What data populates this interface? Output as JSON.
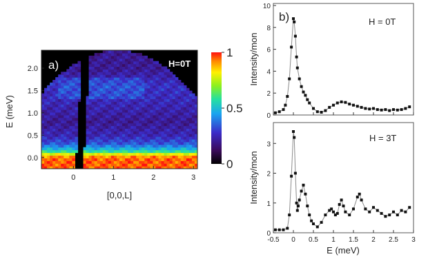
{
  "chart_data": [
    {
      "type": "heatmap",
      "panel_label": "a)",
      "annotation": "H=0T",
      "xlabel": "[0,0,L]",
      "ylabel": "E (meV)",
      "xlim": [
        -0.8,
        3.1
      ],
      "ylim": [
        -0.25,
        2.4
      ],
      "xticks": [
        "0",
        "1",
        "2",
        "3"
      ],
      "yticks": [
        "0.0",
        "0.5",
        "1.0",
        "1.5",
        "2.0"
      ],
      "colorbar": {
        "range": [
          0,
          1
        ],
        "ticks": [
          "0",
          "0.5",
          "1"
        ]
      },
      "intensity_by_energy": [
        {
          "E": -0.05,
          "I": 0.95
        },
        {
          "E": 0.05,
          "I": 0.9
        },
        {
          "E": 0.15,
          "I": 0.55
        },
        {
          "E": 0.3,
          "I": 0.35
        },
        {
          "E": 0.5,
          "I": 0.25
        },
        {
          "E": 0.8,
          "I": 0.2
        },
        {
          "E": 1.2,
          "I": 0.25
        },
        {
          "E": 1.6,
          "I": 0.28
        },
        {
          "E": 2.0,
          "I": 0.2
        }
      ],
      "gap_region_L": [
        0.05,
        0.25
      ]
    },
    {
      "type": "line",
      "panel_label": "b)",
      "annotation": "H = 0T",
      "ylabel": "Intensity/mon",
      "ylim": [
        0,
        10
      ],
      "yticks": [
        "0",
        "2",
        "4",
        "6",
        "8",
        "10"
      ],
      "xlim": [
        -0.5,
        3.0
      ],
      "series": [
        {
          "x": [
            -0.45,
            -0.35,
            -0.25,
            -0.2,
            -0.15,
            -0.1,
            -0.05,
            0.0,
            0.02,
            0.05,
            0.08,
            0.1,
            0.15,
            0.2,
            0.25,
            0.3,
            0.35,
            0.4,
            0.5,
            0.6,
            0.7,
            0.8,
            0.9,
            1.0,
            1.1,
            1.2,
            1.3,
            1.4,
            1.5,
            1.6,
            1.7,
            1.8,
            1.9,
            2.0,
            2.1,
            2.2,
            2.3,
            2.4,
            2.5,
            2.6,
            2.7,
            2.8,
            2.9
          ],
          "y": [
            0.2,
            0.3,
            0.5,
            0.9,
            1.7,
            3.3,
            6.2,
            8.8,
            8.5,
            7.2,
            5.3,
            4.3,
            3.3,
            2.6,
            2.1,
            1.8,
            1.4,
            1.1,
            0.6,
            0.3,
            0.25,
            0.4,
            0.7,
            0.9,
            1.1,
            1.2,
            1.15,
            1.0,
            0.9,
            0.8,
            0.7,
            0.6,
            0.55,
            0.6,
            0.5,
            0.45,
            0.5,
            0.4,
            0.5,
            0.45,
            0.5,
            0.6,
            0.75
          ]
        }
      ]
    },
    {
      "type": "line",
      "annotation": "H = 3T",
      "xlabel": "E (meV)",
      "ylabel": "Intensity/mon",
      "ylim": [
        0,
        3.7
      ],
      "yticks": [
        "0",
        "1",
        "2",
        "3"
      ],
      "xlim": [
        -0.5,
        3.0
      ],
      "xticks": [
        "-0.5",
        "0",
        "0.5",
        "1",
        "1.5",
        "2",
        "2.5",
        "3"
      ],
      "series": [
        {
          "x": [
            -0.45,
            -0.35,
            -0.25,
            -0.15,
            -0.1,
            -0.05,
            0.0,
            0.02,
            0.05,
            0.08,
            0.1,
            0.12,
            0.15,
            0.2,
            0.25,
            0.3,
            0.35,
            0.4,
            0.45,
            0.5,
            0.6,
            0.7,
            0.8,
            0.9,
            0.95,
            1.0,
            1.05,
            1.1,
            1.15,
            1.2,
            1.25,
            1.3,
            1.4,
            1.5,
            1.6,
            1.65,
            1.7,
            1.8,
            1.9,
            2.0,
            2.1,
            2.2,
            2.3,
            2.4,
            2.5,
            2.6,
            2.7,
            2.8,
            2.9
          ],
          "y": [
            0.1,
            0.1,
            0.1,
            0.15,
            0.6,
            1.9,
            3.4,
            3.2,
            2.0,
            1.0,
            0.75,
            0.9,
            1.1,
            1.4,
            1.6,
            1.3,
            0.9,
            0.6,
            0.4,
            0.3,
            0.2,
            0.35,
            0.6,
            0.75,
            0.8,
            0.7,
            0.6,
            0.65,
            0.95,
            1.1,
            0.9,
            0.7,
            0.6,
            0.8,
            1.2,
            1.3,
            1.1,
            0.8,
            0.7,
            0.85,
            0.75,
            0.65,
            0.55,
            0.6,
            0.7,
            0.6,
            0.75,
            0.7,
            0.85
          ]
        }
      ]
    }
  ]
}
